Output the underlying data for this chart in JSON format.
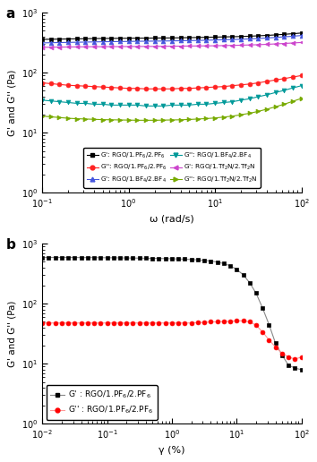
{
  "panel_a": {
    "omega": [
      0.1,
      0.126,
      0.158,
      0.2,
      0.251,
      0.316,
      0.398,
      0.501,
      0.631,
      0.794,
      1.0,
      1.259,
      1.585,
      1.995,
      2.512,
      3.162,
      3.981,
      5.012,
      6.31,
      7.943,
      10.0,
      12.59,
      15.85,
      19.95,
      25.12,
      31.62,
      39.81,
      50.12,
      63.1,
      79.43,
      100.0
    ],
    "G_prime_PF6": [
      360,
      362,
      364,
      366,
      368,
      370,
      372,
      373,
      374,
      375,
      376,
      377,
      378,
      379,
      380,
      381,
      383,
      385,
      387,
      390,
      393,
      396,
      399,
      402,
      407,
      413,
      420,
      428,
      438,
      448,
      460
    ],
    "G_dprime_PF6": [
      68,
      66,
      64,
      62,
      61,
      60,
      59,
      58,
      57,
      56,
      55,
      55,
      54,
      54,
      54,
      54,
      55,
      55,
      56,
      57,
      58,
      59,
      61,
      63,
      65,
      68,
      72,
      76,
      80,
      85,
      90
    ],
    "G_prime_BF4": [
      315,
      317,
      319,
      321,
      323,
      325,
      327,
      329,
      330,
      332,
      333,
      335,
      336,
      337,
      338,
      340,
      342,
      344,
      346,
      349,
      352,
      355,
      358,
      362,
      367,
      373,
      380,
      388,
      397,
      407,
      418
    ],
    "G_dprime_BF4": [
      35,
      34,
      33,
      32,
      31,
      31,
      30,
      30,
      29,
      29,
      29,
      29,
      28,
      28,
      28,
      29,
      29,
      29,
      30,
      30,
      31,
      32,
      33,
      35,
      37,
      40,
      43,
      47,
      51,
      56,
      61
    ],
    "G_prime_Tf2N": [
      265,
      267,
      268,
      269,
      270,
      271,
      272,
      272,
      273,
      273,
      274,
      274,
      275,
      275,
      276,
      277,
      278,
      279,
      280,
      281,
      282,
      284,
      286,
      288,
      291,
      294,
      298,
      303,
      308,
      314,
      320
    ],
    "G_dprime_Tf2N": [
      19,
      18.5,
      18,
      17.5,
      17.2,
      17.0,
      16.8,
      16.6,
      16.5,
      16.4,
      16.3,
      16.2,
      16.2,
      16.2,
      16.3,
      16.4,
      16.5,
      16.7,
      17.0,
      17.3,
      17.7,
      18.3,
      19.0,
      20.0,
      21.2,
      22.8,
      24.8,
      27.2,
      30.0,
      33.5,
      37.5
    ],
    "color_PF6_Gprime": "#000000",
    "color_PF6_Gdprime": "#ff2222",
    "color_BF4_Gprime": "#4455dd",
    "color_BF4_Gdprime": "#009999",
    "color_Tf2N_Gprime": "#cc44cc",
    "color_Tf2N_Gdprime": "#77aa00",
    "ylabel": "G' and G'' (Pa)",
    "xlabel": "ω (rad/s)",
    "xlim": [
      0.1,
      100
    ],
    "ylim": [
      1,
      1000
    ]
  },
  "panel_b": {
    "gamma": [
      0.01,
      0.0126,
      0.0158,
      0.02,
      0.0251,
      0.0316,
      0.0398,
      0.0501,
      0.0631,
      0.0794,
      0.1,
      0.126,
      0.158,
      0.2,
      0.251,
      0.316,
      0.398,
      0.501,
      0.631,
      0.794,
      1.0,
      1.259,
      1.585,
      1.995,
      2.512,
      3.162,
      3.981,
      5.012,
      6.31,
      7.943,
      10.0,
      12.59,
      15.85,
      19.95,
      25.12,
      31.62,
      39.81,
      50.12,
      63.1,
      79.43,
      100.0
    ],
    "G_prime": [
      590,
      592,
      592,
      592,
      591,
      590,
      589,
      588,
      587,
      586,
      585,
      584,
      582,
      580,
      578,
      576,
      574,
      572,
      569,
      566,
      562,
      558,
      553,
      547,
      539,
      528,
      514,
      495,
      468,
      430,
      375,
      305,
      225,
      150,
      85,
      45,
      22,
      14,
      9.5,
      8.5,
      8
    ],
    "G_dprime": [
      48,
      48,
      48,
      48,
      48,
      48,
      48,
      48,
      48,
      48,
      48,
      48,
      48,
      48,
      48,
      48,
      48,
      48,
      48,
      48,
      48,
      48,
      48,
      48,
      49,
      49,
      50,
      50,
      51,
      51,
      52,
      52,
      50,
      44,
      34,
      25,
      19,
      15,
      13,
      12,
      13
    ],
    "color_Gprime": "#000000",
    "color_Gdprime": "#ff0000",
    "line_color_Gprime": "#888888",
    "line_color_Gdprime": "#ff9999",
    "ylabel": "G' and G'' (Pa)",
    "xlabel": "γ (%)",
    "xlim": [
      0.01,
      100
    ],
    "ylim": [
      1,
      1000
    ]
  }
}
